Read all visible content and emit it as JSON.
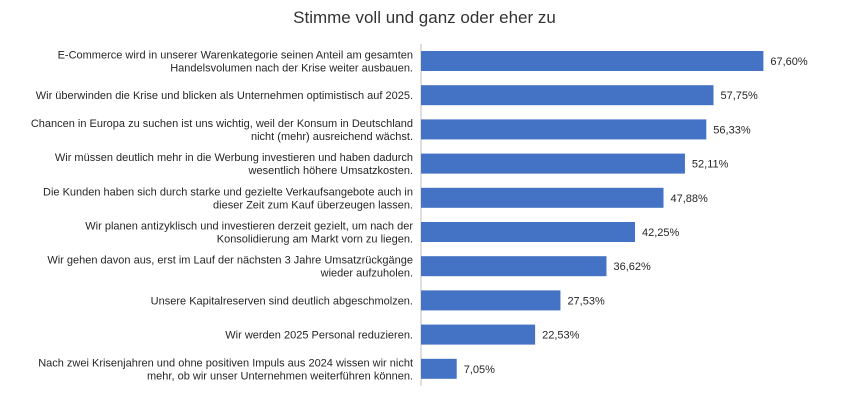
{
  "chart_data": {
    "type": "bar",
    "orientation": "horizontal",
    "title": "Stimme voll und ganz oder eher zu",
    "categories": [
      [
        "E-Commerce wird in unserer Warenkategorie seinen Anteil am gesamten",
        "Handelsvolumen nach der Krise weiter ausbauen."
      ],
      [
        "Wir überwinden die Krise und blicken als Unternehmen optimistisch auf 2025."
      ],
      [
        "Chancen in Europa zu suchen ist uns wichtig, weil der Konsum in Deutschland",
        "nicht (mehr) ausreichend wächst."
      ],
      [
        "Wir müssen deutlich mehr in die Werbung investieren und haben dadurch",
        "wesentlich höhere Umsatzkosten."
      ],
      [
        "Die Kunden haben sich durch starke und gezielte Verkaufsangebote auch in",
        "dieser Zeit zum Kauf überzeugen lassen."
      ],
      [
        "Wir planen antizyklisch und investieren derzeit gezielt, um nach der",
        "Konsolidierung am Markt vorn zu liegen."
      ],
      [
        "Wir gehen davon aus, erst im Lauf der nächsten 3 Jahre Umsatzrückgänge",
        "wieder aufzuholen."
      ],
      [
        "Unsere Kapitalreserven sind deutlich abgeschmolzen."
      ],
      [
        "Wir werden 2025 Personal reduzieren."
      ],
      [
        "Nach zwei Krisenjahren und ohne positiven Impuls aus 2024 wissen wir nicht",
        "mehr, ob wir unser Unternehmen weiterführen können."
      ]
    ],
    "values": [
      67.6,
      57.75,
      56.33,
      52.11,
      47.88,
      42.25,
      36.62,
      27.53,
      22.53,
      7.05
    ],
    "value_labels": [
      "67,60%",
      "57,75%",
      "56,33%",
      "52,11%",
      "47,88%",
      "42,25%",
      "36,62%",
      "27,53%",
      "22,53%",
      "7,05%"
    ],
    "xlim": [
      0,
      100
    ],
    "grid": false,
    "legend": "none",
    "bar_color": "#4472c4"
  }
}
